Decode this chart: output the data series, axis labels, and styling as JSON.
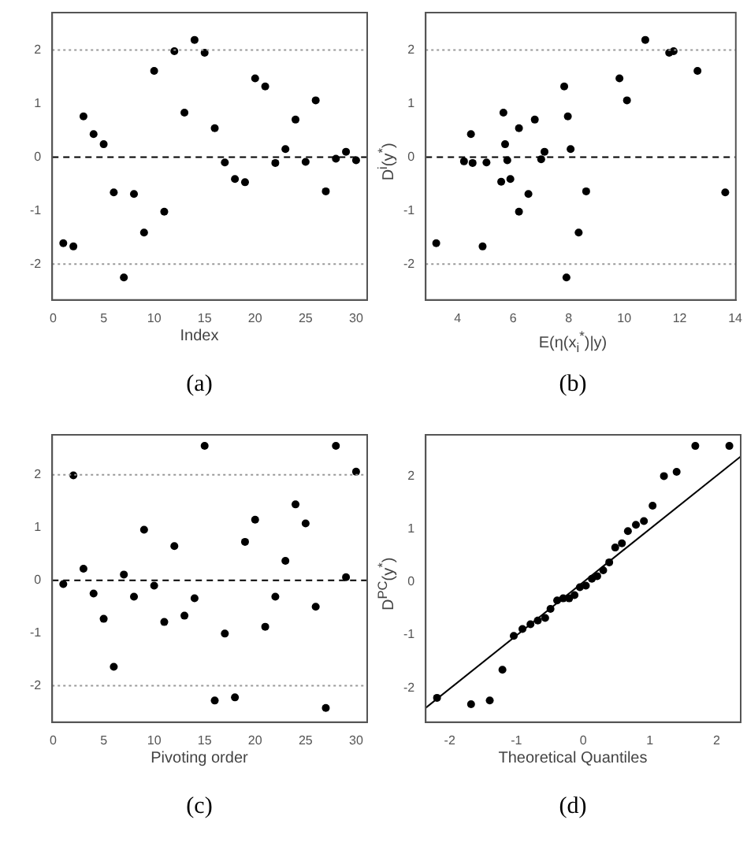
{
  "chart_data": [
    {
      "type": "scatter",
      "xlabel": "Index",
      "annotations": [
        "(a)"
      ],
      "marker": "circle",
      "series": [
        {
          "color": "#000000",
          "x": [
            1,
            2,
            3,
            4,
            5,
            6,
            7,
            8,
            9,
            10,
            11,
            12,
            13,
            14,
            15,
            16,
            17,
            18,
            19,
            20,
            21,
            22,
            23,
            24,
            25,
            26,
            27,
            28,
            29,
            30
          ],
          "values": [
            -1.61,
            -1.67,
            0.76,
            0.43,
            0.24,
            -0.66,
            -2.25,
            -0.69,
            -1.41,
            1.61,
            -1.02,
            1.98,
            0.83,
            2.19,
            1.95,
            0.54,
            -0.1,
            -0.41,
            -0.47,
            1.47,
            1.32,
            -0.11,
            0.15,
            0.7,
            -0.09,
            1.06,
            -0.64,
            -0.03,
            0.1,
            -0.06
          ]
        }
      ],
      "xlim": [
        -0.1,
        31.1
      ],
      "ylim": [
        -2.67,
        2.7
      ],
      "xticks": [
        0,
        5,
        10,
        15,
        20,
        25,
        30
      ],
      "yticks": [
        -2,
        -1,
        0,
        1,
        2
      ],
      "ref_lines": [
        {
          "axis": "y",
          "value": 2,
          "line_style": "dotted",
          "color": "#999999"
        },
        {
          "axis": "y",
          "value": 0,
          "line_style": "dashed",
          "color": "#000000"
        },
        {
          "axis": "y",
          "value": -2,
          "line_style": "dotted",
          "color": "#999999"
        }
      ]
    },
    {
      "type": "scatter",
      "xlabel": "E(η(x$_{i}$$^{*}$)|y)",
      "ylabel": "D$^{i}$(y$^{*}$)",
      "annotations": [
        "(b)"
      ],
      "marker": "circle",
      "series": [
        {
          "color": "#000000",
          "x": [
            3.23,
            4.23,
            4.48,
            4.54,
            4.9,
            5.04,
            5.57,
            5.65,
            5.71,
            5.79,
            5.9,
            6.21,
            6.21,
            6.55,
            6.78,
            7.01,
            7.13,
            7.84,
            7.92,
            7.97,
            8.07,
            8.36,
            8.63,
            9.83,
            10.1,
            10.76,
            11.62,
            11.78,
            12.64,
            13.64
          ],
          "values": [
            -1.61,
            -0.08,
            0.43,
            -0.11,
            -1.67,
            -0.1,
            -0.46,
            0.83,
            0.24,
            -0.06,
            -0.41,
            -1.02,
            0.54,
            -0.69,
            0.7,
            -0.04,
            0.1,
            1.32,
            -2.25,
            0.76,
            0.15,
            -1.41,
            -0.64,
            1.47,
            1.06,
            2.19,
            1.95,
            1.98,
            1.61,
            -0.66
          ]
        }
      ],
      "xlim": [
        2.85,
        14.02
      ],
      "ylim": [
        -2.67,
        2.7
      ],
      "xticks": [
        4,
        6,
        8,
        10,
        12,
        14
      ],
      "yticks": [
        -2,
        -1,
        0,
        1,
        2
      ],
      "ref_lines": [
        {
          "axis": "y",
          "value": 2,
          "line_style": "dotted",
          "color": "#999999"
        },
        {
          "axis": "y",
          "value": 0,
          "line_style": "dashed",
          "color": "#000000"
        },
        {
          "axis": "y",
          "value": -2,
          "line_style": "dotted",
          "color": "#999999"
        }
      ]
    },
    {
      "type": "scatter",
      "xlabel": "Pivoting order",
      "annotations": [
        "(c)"
      ],
      "marker": "circle",
      "series": [
        {
          "color": "#000000",
          "x": [
            1,
            2,
            3,
            4,
            5,
            6,
            7,
            8,
            9,
            10,
            11,
            12,
            13,
            14,
            15,
            16,
            17,
            18,
            19,
            20,
            21,
            22,
            23,
            24,
            25,
            26,
            27,
            28,
            29,
            30
          ],
          "values": [
            -0.07,
            1.99,
            0.22,
            -0.25,
            -0.73,
            -1.64,
            0.11,
            -0.31,
            0.96,
            -0.1,
            -0.79,
            0.65,
            -0.67,
            -0.34,
            2.55,
            -2.28,
            -1.01,
            -2.22,
            0.73,
            1.15,
            -0.88,
            -0.31,
            0.37,
            1.44,
            1.08,
            -0.5,
            -2.42,
            2.55,
            0.06,
            2.06
          ]
        }
      ],
      "xlim": [
        -0.1,
        31.1
      ],
      "ylim": [
        -2.69,
        2.76
      ],
      "xticks": [
        0,
        5,
        10,
        15,
        20,
        25,
        30
      ],
      "yticks": [
        -2,
        -1,
        0,
        1,
        2
      ],
      "ref_lines": [
        {
          "axis": "y",
          "value": 2,
          "line_style": "dotted",
          "color": "#999999"
        },
        {
          "axis": "y",
          "value": 0,
          "line_style": "dashed",
          "color": "#000000"
        },
        {
          "axis": "y",
          "value": -2,
          "line_style": "dotted",
          "color": "#999999"
        }
      ]
    },
    {
      "type": "scatter",
      "xlabel": "Theoretical Quantiles",
      "ylabel": "D$^{PC}$(y$^{*}$)",
      "annotations": [
        "(d)"
      ],
      "marker": "circle",
      "series": [
        {
          "color": "#000000",
          "x": [
            -2.19,
            -1.68,
            -1.4,
            -1.21,
            -1.04,
            -0.91,
            -0.79,
            -0.68,
            -0.57,
            -0.49,
            -0.39,
            -0.3,
            -0.21,
            -0.13,
            -0.05,
            0.04,
            0.13,
            0.21,
            0.3,
            0.39,
            0.48,
            0.58,
            0.67,
            0.79,
            0.91,
            1.04,
            1.21,
            1.4,
            1.68,
            2.19
          ],
          "values": [
            -2.19,
            -2.31,
            -2.24,
            -1.66,
            -1.02,
            -0.89,
            -0.8,
            -0.73,
            -0.68,
            -0.51,
            -0.35,
            -0.31,
            -0.31,
            -0.25,
            -0.1,
            -0.07,
            0.06,
            0.11,
            0.22,
            0.37,
            0.65,
            0.73,
            0.96,
            1.08,
            1.15,
            1.44,
            2.0,
            2.08,
            2.57,
            2.57
          ]
        },
        {
          "type": "line",
          "color": "#000000",
          "marker": "none",
          "x": [
            -2.36,
            2.36
          ],
          "values": [
            -2.38,
            2.37
          ]
        }
      ],
      "xlim": [
        -2.36,
        2.36
      ],
      "ylim": [
        -2.65,
        2.78
      ],
      "xticks": [
        -2,
        -1,
        0,
        1,
        2
      ],
      "yticks": [
        -2,
        -1,
        0,
        1,
        2
      ]
    }
  ]
}
